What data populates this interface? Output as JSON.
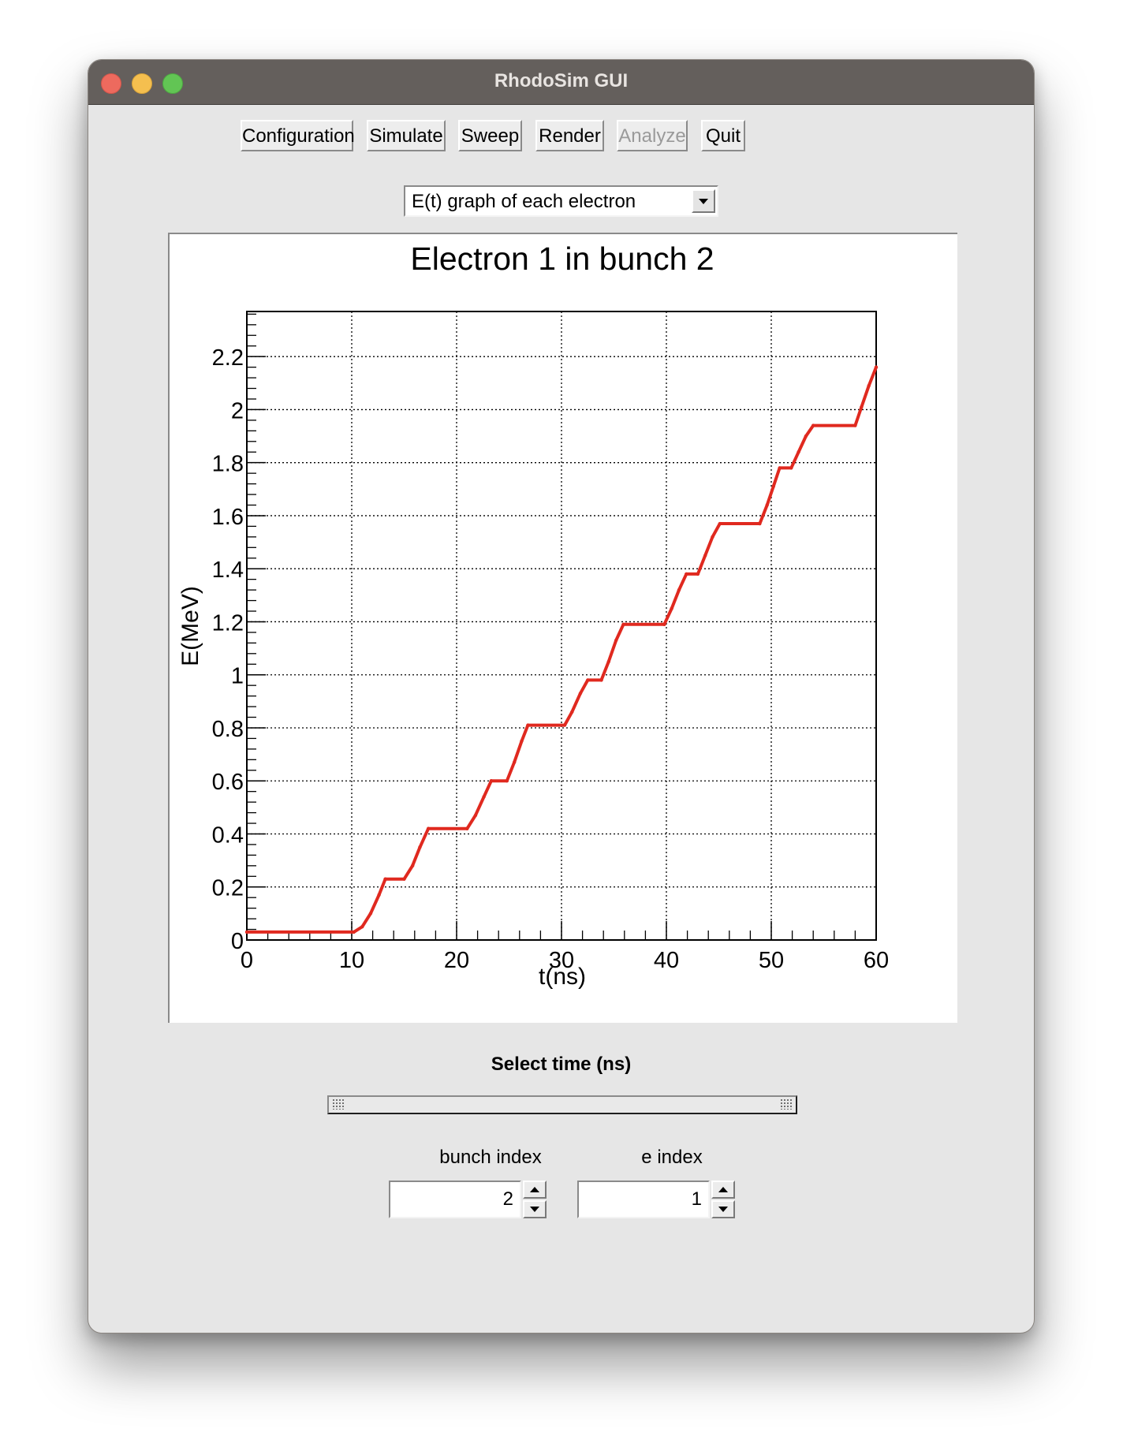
{
  "window": {
    "title": "RhodoSim GUI"
  },
  "toolbar": {
    "buttons": [
      {
        "label": "Configuration",
        "enabled": true
      },
      {
        "label": "Simulate",
        "enabled": true
      },
      {
        "label": "Sweep",
        "enabled": true
      },
      {
        "label": "Render",
        "enabled": true
      },
      {
        "label": "Analyze",
        "enabled": false
      },
      {
        "label": "Quit",
        "enabled": true
      }
    ]
  },
  "view_select": {
    "selected": "E(t) graph of each electron"
  },
  "chart_data": {
    "type": "line",
    "title": "Electron 1 in bunch 2",
    "xlabel": "t(ns)",
    "ylabel": "E(MeV)",
    "xlim": [
      0,
      60
    ],
    "ylim": [
      0,
      2.37
    ],
    "xticks": [
      "0",
      "10",
      "20",
      "30",
      "40",
      "50",
      "60"
    ],
    "yticks": [
      "0",
      "0.2",
      "0.4",
      "0.6",
      "0.8",
      "1",
      "1.2",
      "1.4",
      "1.6",
      "1.8",
      "2",
      "2.2"
    ],
    "grid": true,
    "series": [
      {
        "color": "#e0291f",
        "x": [
          0,
          10.2,
          11,
          11.8,
          12.6,
          13.2,
          15.0,
          15.8,
          16.5,
          17.3,
          21.0,
          21.8,
          22.6,
          23.3,
          24.8,
          25.5,
          26.2,
          26.8,
          30.3,
          31.0,
          31.8,
          32.5,
          33.8,
          34.5,
          35.2,
          35.9,
          39.8,
          40.5,
          41.2,
          41.9,
          43.0,
          43.7,
          44.4,
          45.1,
          48.9,
          49.6,
          50.2,
          50.8,
          51.9,
          52.6,
          53.3,
          54.0,
          58.0,
          58.6,
          59.3,
          60
        ],
        "y": [
          0.03,
          0.03,
          0.05,
          0.1,
          0.17,
          0.23,
          0.23,
          0.28,
          0.35,
          0.42,
          0.42,
          0.47,
          0.54,
          0.6,
          0.6,
          0.67,
          0.75,
          0.81,
          0.81,
          0.86,
          0.93,
          0.98,
          0.98,
          1.05,
          1.13,
          1.19,
          1.19,
          1.25,
          1.32,
          1.38,
          1.38,
          1.45,
          1.52,
          1.57,
          1.57,
          1.64,
          1.71,
          1.78,
          1.78,
          1.84,
          1.9,
          1.94,
          1.94,
          2.01,
          2.09,
          2.16
        ]
      }
    ]
  },
  "time_slider": {
    "label": "Select time (ns)"
  },
  "bunch_index": {
    "label": "bunch index",
    "value": "2"
  },
  "e_index": {
    "label": "e index",
    "value": "1"
  }
}
